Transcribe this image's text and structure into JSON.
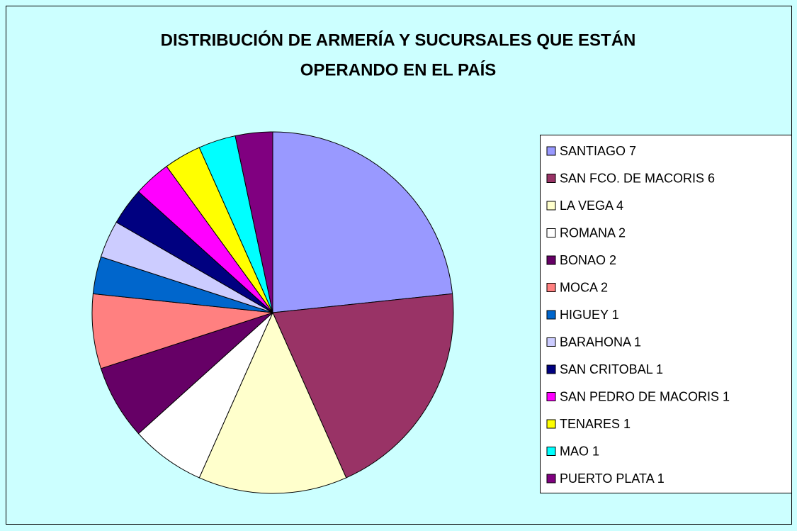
{
  "chart_data": {
    "type": "pie",
    "title": [
      "DISTRIBUCIÓN DE ARMERÍA Y SUCURSALES QUE ESTÁN",
      "OPERANDO EN EL PAÍS"
    ],
    "categories": [
      "SANTIAGO 7",
      "SAN FCO. DE MACORIS 6",
      "LA VEGA 4",
      "ROMANA 2",
      "BONAO 2",
      "MOCA 2",
      "HIGUEY  1",
      "BARAHONA 1",
      "SAN CRITOBAL 1",
      "SAN PEDRO DE MACORIS 1",
      "TENARES 1",
      "MAO 1",
      "PUERTO PLATA 1"
    ],
    "values": [
      7,
      6,
      4,
      2,
      2,
      2,
      1,
      1,
      1,
      1,
      1,
      1,
      1
    ],
    "colors": [
      "#9999ff",
      "#993366",
      "#ffffcc",
      "#ffffff",
      "#660066",
      "#ff8080",
      "#0066cc",
      "#ccccff",
      "#000080",
      "#ff00ff",
      "#ffff00",
      "#00ffff",
      "#800080"
    ],
    "legend": "right"
  }
}
